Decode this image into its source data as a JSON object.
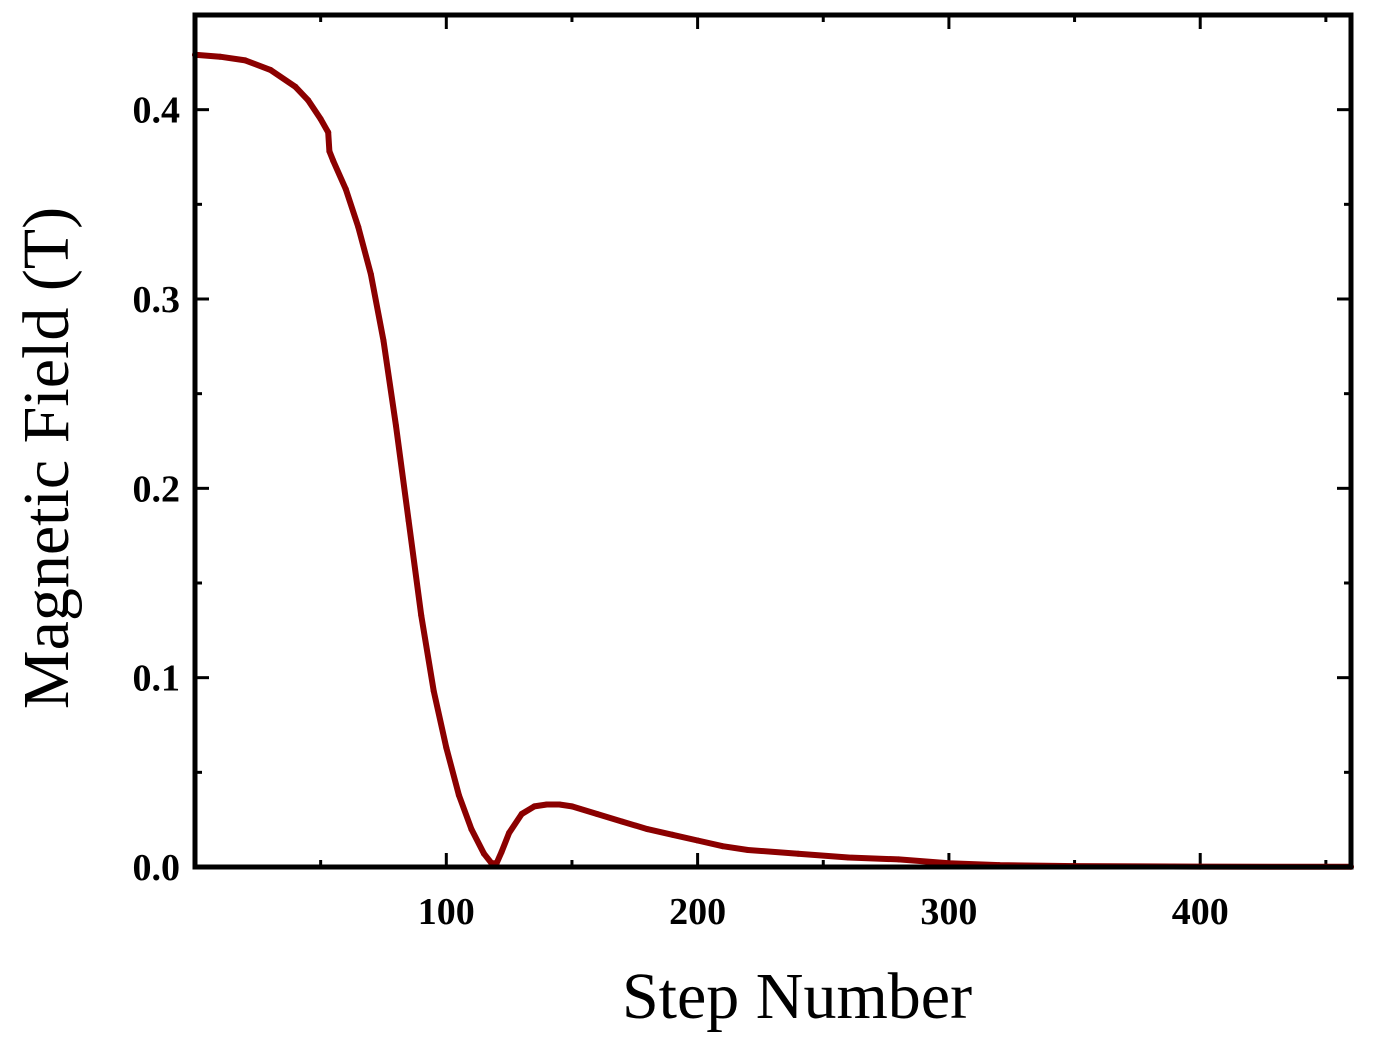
{
  "chart_data": {
    "type": "line",
    "title": "",
    "xlabel": "Step Number",
    "ylabel": "Magnetic Field (T)",
    "xlim": [
      0,
      460
    ],
    "ylim": [
      0,
      0.45
    ],
    "x_ticks": [
      100,
      200,
      300,
      400
    ],
    "x_tick_labels": [
      "100",
      "200",
      "300",
      "400"
    ],
    "y_ticks": [
      0.0,
      0.1,
      0.2,
      0.3,
      0.4
    ],
    "y_tick_labels": [
      "0.0",
      "0.1",
      "0.2",
      "0.3",
      "0.4"
    ],
    "grid": false,
    "legend": false,
    "line_color": "#8b0000",
    "axis_color": "#000000",
    "series": [
      {
        "name": "Magnetic Field",
        "x": [
          0,
          10,
          20,
          30,
          40,
          45,
          50,
          53,
          53.5,
          55,
          60,
          65,
          70,
          75,
          80,
          85,
          90,
          95,
          100,
          105,
          110,
          115,
          118,
          120,
          122,
          125,
          130,
          135,
          140,
          145,
          150,
          160,
          170,
          180,
          190,
          200,
          210,
          220,
          240,
          260,
          280,
          300,
          320,
          350,
          400,
          460
        ],
        "values": [
          0.429,
          0.428,
          0.426,
          0.421,
          0.412,
          0.405,
          0.395,
          0.388,
          0.378,
          0.373,
          0.358,
          0.338,
          0.313,
          0.278,
          0.233,
          0.183,
          0.133,
          0.093,
          0.063,
          0.038,
          0.02,
          0.007,
          0.002,
          0.002,
          0.008,
          0.018,
          0.028,
          0.032,
          0.033,
          0.033,
          0.032,
          0.028,
          0.024,
          0.02,
          0.017,
          0.014,
          0.011,
          0.009,
          0.007,
          0.005,
          0.004,
          0.002,
          0.001,
          0.0005,
          0.0002,
          0.0001
        ]
      }
    ]
  }
}
